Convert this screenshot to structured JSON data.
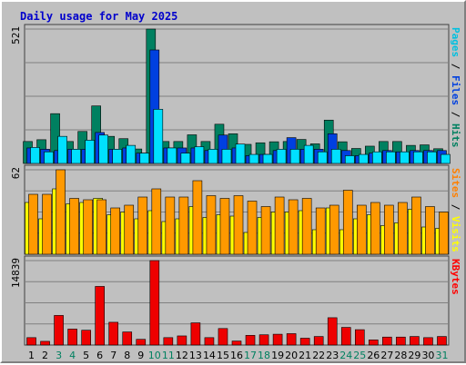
{
  "chart_data": {
    "type": "bar",
    "title": "Daily usage for May 2025",
    "categories": [
      "1",
      "2",
      "3",
      "4",
      "5",
      "6",
      "7",
      "8",
      "9",
      "10",
      "11",
      "12",
      "13",
      "14",
      "15",
      "16",
      "17",
      "18",
      "19",
      "20",
      "21",
      "22",
      "23",
      "24",
      "25",
      "26",
      "27",
      "28",
      "29",
      "30",
      "31"
    ],
    "weekend_days": [
      "3",
      "4",
      "10",
      "11",
      "17",
      "18",
      "24",
      "25",
      "31"
    ],
    "panels": [
      {
        "scale_label": "521",
        "ymax": 521,
        "axis_title_parts": [
          {
            "text": "Pages",
            "color": "#00c0e0"
          },
          {
            "text": " / ",
            "color": "#000000"
          },
          {
            "text": "Files",
            "color": "#0040e0"
          },
          {
            "text": " / ",
            "color": "#000000"
          },
          {
            "text": "Hits",
            "color": "#008060"
          }
        ],
        "series": [
          {
            "name": "Hits",
            "color": "#008060",
            "values": [
              85,
              92,
              193,
              85,
              124,
              223,
              105,
              96,
              56,
              521,
              85,
              85,
              111,
              85,
              152,
              115,
              74,
              80,
              84,
              85,
              93,
              76,
              168,
              84,
              58,
              67,
              85,
              85,
              70,
              72,
              57
            ]
          },
          {
            "name": "Files",
            "color": "#0040e0",
            "values": [
              60,
              55,
              50,
              55,
              55,
              120,
              55,
              60,
              40,
              440,
              60,
              60,
              60,
              50,
              110,
              60,
              30,
              35,
              50,
              100,
              55,
              55,
              115,
              50,
              30,
              40,
              50,
              45,
              50,
              50,
              50
            ]
          },
          {
            "name": "Pages",
            "color": "#00e0ff",
            "values": [
              62,
              45,
              105,
              55,
              90,
              110,
              55,
              70,
              40,
              210,
              60,
              40,
              65,
              55,
              55,
              75,
              35,
              35,
              55,
              55,
              70,
              45,
              55,
              30,
              35,
              45,
              45,
              45,
              45,
              45,
              35
            ]
          }
        ]
      },
      {
        "scale_label": "62",
        "ymax": 62,
        "axis_title_parts": [
          {
            "text": "Sites",
            "color": "#ff8000"
          },
          {
            "text": " / ",
            "color": "#000000"
          },
          {
            "text": "Visits",
            "color": "#ffff00"
          }
        ],
        "series": [
          {
            "name": "Visits",
            "color": "#ffff00",
            "values": [
              38,
              26,
              48,
              37,
              38,
              41,
              29,
              31,
              26,
              32,
              24,
              26,
              35,
              27,
              29,
              28,
              16,
              27,
              31,
              31,
              32,
              18,
              34,
              18,
              26,
              29,
              21,
              23,
              33,
              20,
              19
            ]
          },
          {
            "name": "Sites",
            "color": "#ff9900",
            "values": [
              44,
              44,
              62,
              41,
              40,
              40,
              34,
              36,
              42,
              48,
              42,
              42,
              54,
              43,
              41,
              43,
              39,
              35,
              42,
              40,
              41,
              34,
              36,
              47,
              36,
              38,
              36,
              38,
              42,
              35,
              31
            ]
          }
        ]
      },
      {
        "scale_label": "14839",
        "ymax": 14839,
        "axis_title_parts": [
          {
            "text": "KBytes",
            "color": "#ff0000"
          }
        ],
        "series": [
          {
            "name": "KBytes",
            "color": "#ee0000",
            "values": [
              1300,
              650,
              5200,
              2800,
              2600,
              10300,
              4000,
              2300,
              1000,
              14839,
              1300,
              1600,
              3900,
              1300,
              2900,
              700,
              1700,
              1800,
              1900,
              2000,
              1200,
              1500,
              4800,
              3100,
              2700,
              900,
              1400,
              1400,
              1500,
              1300,
              1500
            ]
          }
        ]
      }
    ]
  }
}
